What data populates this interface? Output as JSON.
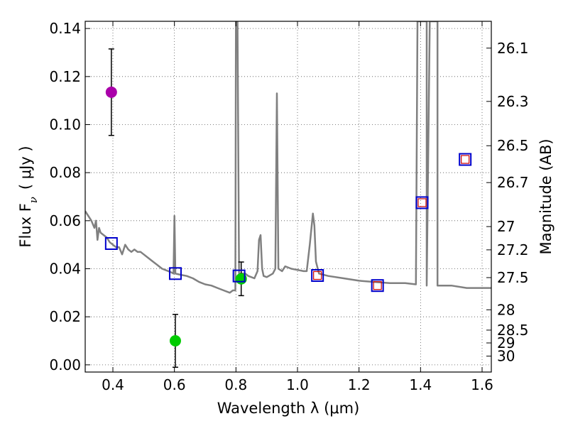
{
  "chart_data": {
    "type": "scatter",
    "xlabel": "Wavelength  λ (μm)",
    "ylabel": "Flux  F",
    "ylabel_sub": "ν",
    "ylabel_unit": "( μJy )",
    "ylabel_right": "Magnitude (AB)",
    "xlim": [
      0.31,
      1.63
    ],
    "ylim": [
      -0.003,
      0.143
    ],
    "grid": true,
    "x_ticks": [
      {
        "v": 0.4,
        "label": "0.4"
      },
      {
        "v": 0.6,
        "label": "0.6"
      },
      {
        "v": 0.8,
        "label": "0.8"
      },
      {
        "v": 1.0,
        "label": "1.0"
      },
      {
        "v": 1.2,
        "label": "1.2"
      },
      {
        "v": 1.4,
        "label": "1.4"
      },
      {
        "v": 1.6,
        "label": "1.6"
      }
    ],
    "y_ticks": [
      {
        "v": 0.0,
        "label": "0.00"
      },
      {
        "v": 0.02,
        "label": "0.02"
      },
      {
        "v": 0.04,
        "label": "0.04"
      },
      {
        "v": 0.06,
        "label": "0.06"
      },
      {
        "v": 0.08,
        "label": "0.08"
      },
      {
        "v": 0.1,
        "label": "0.10"
      },
      {
        "v": 0.12,
        "label": "0.12"
      },
      {
        "v": 0.14,
        "label": "0.14"
      }
    ],
    "mag_ticks": [
      {
        "v": 26.1,
        "label": "26.1"
      },
      {
        "v": 26.3,
        "label": "26.3"
      },
      {
        "v": 26.5,
        "label": "26.5"
      },
      {
        "v": 26.7,
        "label": "26.7"
      },
      {
        "v": 27.0,
        "label": "27"
      },
      {
        "v": 27.2,
        "label": "27.2"
      },
      {
        "v": 27.5,
        "label": "27.5"
      },
      {
        "v": 28.0,
        "label": "28"
      },
      {
        "v": 28.5,
        "label": "28.5"
      },
      {
        "v": 29.0,
        "label": "29"
      },
      {
        "v": 30.0,
        "label": "30"
      }
    ],
    "sed_model": {
      "color": "#808080",
      "points": [
        [
          0.31,
          0.064
        ],
        [
          0.33,
          0.06
        ],
        [
          0.34,
          0.057
        ],
        [
          0.345,
          0.06
        ],
        [
          0.35,
          0.052
        ],
        [
          0.355,
          0.057
        ],
        [
          0.36,
          0.055
        ],
        [
          0.37,
          0.054
        ],
        [
          0.38,
          0.053
        ],
        [
          0.39,
          0.051
        ],
        [
          0.4,
          0.05
        ],
        [
          0.41,
          0.049
        ],
        [
          0.42,
          0.049
        ],
        [
          0.43,
          0.046
        ],
        [
          0.44,
          0.05
        ],
        [
          0.45,
          0.048
        ],
        [
          0.46,
          0.047
        ],
        [
          0.47,
          0.048
        ],
        [
          0.48,
          0.047
        ],
        [
          0.49,
          0.047
        ],
        [
          0.5,
          0.046
        ],
        [
          0.51,
          0.045
        ],
        [
          0.52,
          0.044
        ],
        [
          0.53,
          0.043
        ],
        [
          0.54,
          0.042
        ],
        [
          0.55,
          0.041
        ],
        [
          0.56,
          0.04
        ],
        [
          0.57,
          0.0395
        ],
        [
          0.58,
          0.039
        ],
        [
          0.59,
          0.0385
        ],
        [
          0.597,
          0.038
        ],
        [
          0.6,
          0.062
        ],
        [
          0.603,
          0.038
        ],
        [
          0.61,
          0.0378
        ],
        [
          0.62,
          0.0375
        ],
        [
          0.64,
          0.037
        ],
        [
          0.66,
          0.036
        ],
        [
          0.68,
          0.0345
        ],
        [
          0.7,
          0.0335
        ],
        [
          0.72,
          0.033
        ],
        [
          0.74,
          0.032
        ],
        [
          0.76,
          0.031
        ],
        [
          0.78,
          0.03
        ],
        [
          0.79,
          0.031
        ],
        [
          0.798,
          0.031
        ],
        [
          0.8,
          0.143
        ],
        [
          0.805,
          0.143
        ],
        [
          0.81,
          0.038
        ],
        [
          0.82,
          0.038
        ],
        [
          0.83,
          0.038
        ],
        [
          0.84,
          0.037
        ],
        [
          0.85,
          0.0365
        ],
        [
          0.86,
          0.036
        ],
        [
          0.87,
          0.039
        ],
        [
          0.875,
          0.052
        ],
        [
          0.88,
          0.054
        ],
        [
          0.885,
          0.04
        ],
        [
          0.89,
          0.037
        ],
        [
          0.9,
          0.0365
        ],
        [
          0.92,
          0.038
        ],
        [
          0.928,
          0.04
        ],
        [
          0.933,
          0.113
        ],
        [
          0.938,
          0.04
        ],
        [
          0.95,
          0.039
        ],
        [
          0.96,
          0.041
        ],
        [
          0.98,
          0.04
        ],
        [
          1.0,
          0.0395
        ],
        [
          1.02,
          0.039
        ],
        [
          1.03,
          0.039
        ],
        [
          1.04,
          0.05
        ],
        [
          1.05,
          0.063
        ],
        [
          1.055,
          0.058
        ],
        [
          1.06,
          0.043
        ],
        [
          1.07,
          0.038
        ],
        [
          1.1,
          0.037
        ],
        [
          1.15,
          0.036
        ],
        [
          1.2,
          0.035
        ],
        [
          1.25,
          0.0345
        ],
        [
          1.3,
          0.034
        ],
        [
          1.35,
          0.034
        ],
        [
          1.385,
          0.0335
        ],
        [
          1.39,
          0.143
        ],
        [
          1.42,
          0.143
        ],
        [
          1.42,
          0.033
        ],
        [
          1.43,
          0.143
        ],
        [
          1.455,
          0.143
        ],
        [
          1.455,
          0.033
        ],
        [
          1.5,
          0.033
        ],
        [
          1.55,
          0.032
        ],
        [
          1.6,
          0.032
        ],
        [
          1.63,
          0.032
        ]
      ]
    },
    "series": [
      {
        "marker": "circle-filled",
        "color": "#aa00aa",
        "points": [
          {
            "x": 0.395,
            "y": 0.1135,
            "err": 0.018
          }
        ]
      },
      {
        "marker": "circle-filled",
        "color": "#00cc00",
        "points": [
          {
            "x": 0.603,
            "y": 0.01,
            "err": 0.011
          },
          {
            "x": 0.817,
            "y": 0.0358,
            "err": 0.007
          }
        ]
      },
      {
        "marker": "square-open",
        "color": "#0000cc",
        "points": [
          {
            "x": 0.395,
            "y": 0.0505
          },
          {
            "x": 0.603,
            "y": 0.038
          },
          {
            "x": 0.81,
            "y": 0.037
          },
          {
            "x": 1.065,
            "y": 0.0372
          },
          {
            "x": 1.26,
            "y": 0.033
          },
          {
            "x": 1.405,
            "y": 0.0675
          },
          {
            "x": 1.545,
            "y": 0.0855
          }
        ]
      },
      {
        "marker": "square-open-small",
        "color": "#cc0000",
        "points": [
          {
            "x": 1.065,
            "y": 0.0372
          },
          {
            "x": 1.26,
            "y": 0.033
          },
          {
            "x": 1.405,
            "y": 0.0675
          },
          {
            "x": 1.545,
            "y": 0.0855
          }
        ]
      }
    ]
  }
}
